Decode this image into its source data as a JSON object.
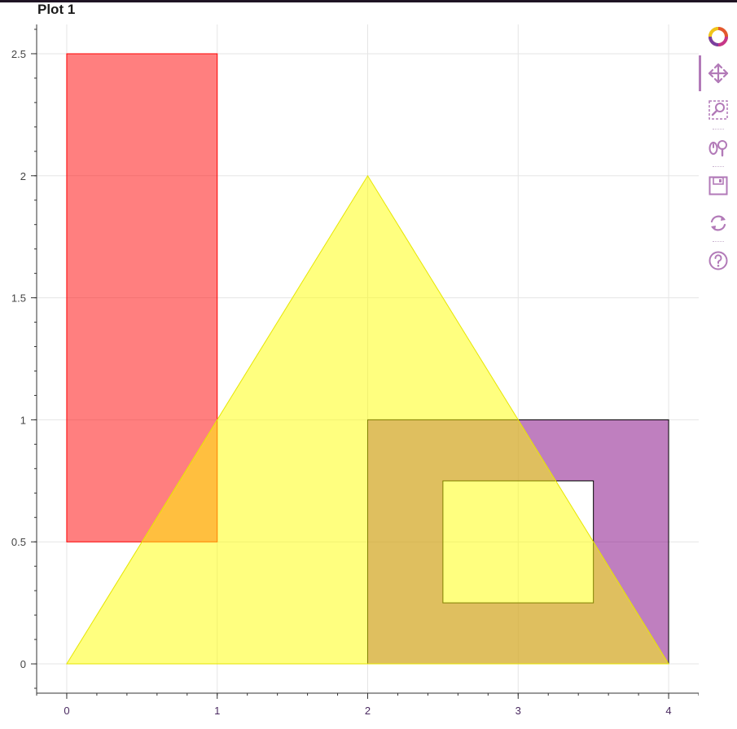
{
  "title": "Plot 1",
  "chart_data": {
    "type": "patches",
    "title": "Plot 1",
    "xlim": [
      -0.2,
      4.2
    ],
    "ylim": [
      -0.12,
      2.62
    ],
    "x_ticks": [
      0,
      1,
      2,
      3,
      4
    ],
    "x_tick_labels": [
      "0",
      "1",
      "2",
      "3",
      "4"
    ],
    "y_ticks": [
      0,
      0.5,
      1,
      1.5,
      2,
      2.5
    ],
    "y_tick_labels": [
      "0",
      "0.5",
      "1",
      "1.5",
      "2",
      "2.5"
    ],
    "x_minor_per_major": 5,
    "y_minor_per_major": 5,
    "grid": true,
    "shapes": [
      {
        "name": "red-rectangle",
        "fill": "#ff0000",
        "fill_alpha": 0.5,
        "line_color": "#ff0000",
        "outer": [
          [
            0,
            0.5
          ],
          [
            1,
            0.5
          ],
          [
            1,
            2.5
          ],
          [
            0,
            2.5
          ]
        ],
        "holes": []
      },
      {
        "name": "purple-square-with-hole",
        "fill": "#800080",
        "fill_alpha": 0.5,
        "line_color": "#000000",
        "outer": [
          [
            2,
            0
          ],
          [
            4,
            0
          ],
          [
            4,
            1
          ],
          [
            2,
            1
          ]
        ],
        "holes": [
          [
            [
              2.5,
              0.25
            ],
            [
              3.5,
              0.25
            ],
            [
              3.5,
              0.75
            ],
            [
              2.5,
              0.75
            ]
          ]
        ]
      },
      {
        "name": "yellow-triangle",
        "fill": "#ffff00",
        "fill_alpha": 0.5,
        "line_color": "#e6e600",
        "outer": [
          [
            0,
            0
          ],
          [
            2,
            2
          ],
          [
            4,
            0
          ]
        ],
        "holes": []
      }
    ]
  },
  "toolbar": {
    "tools": [
      {
        "name": "bokeh-logo-icon",
        "label": "Bokeh"
      },
      {
        "name": "pan-tool-icon",
        "label": "Pan",
        "active": true
      },
      {
        "name": "box-zoom-tool-icon",
        "label": "Box Zoom"
      },
      {
        "name": "wheel-zoom-tool-icon",
        "label": "Wheel Zoom"
      },
      {
        "name": "save-tool-icon",
        "label": "Save"
      },
      {
        "name": "reset-tool-icon",
        "label": "Reset"
      },
      {
        "name": "help-tool-icon",
        "label": "Help"
      }
    ],
    "accent_color": "#b27ab8"
  }
}
